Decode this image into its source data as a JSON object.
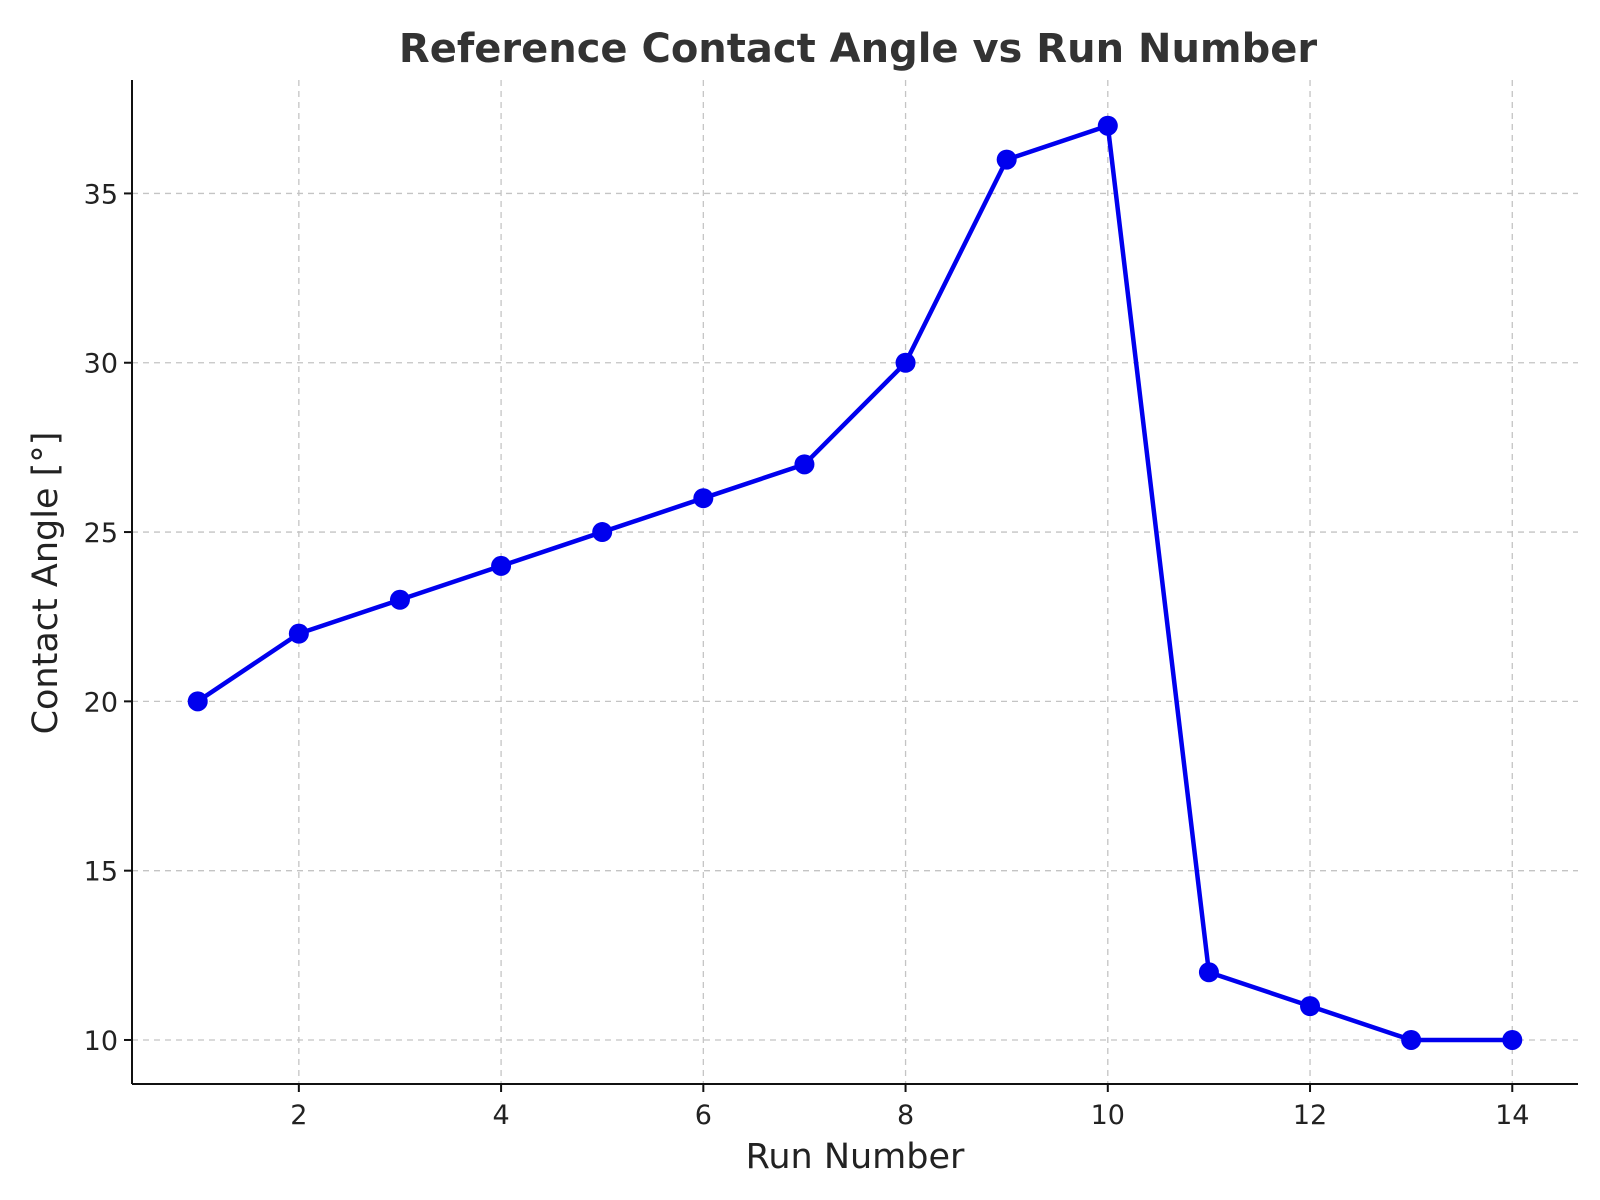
{
  "chart_data": {
    "type": "line",
    "title": "Reference Contact Angle vs Run Number",
    "xlabel": "Run Number",
    "ylabel": "Contact Angle [°]",
    "xlim": [
      0.35,
      14.65
    ],
    "ylim": [
      8.7,
      38.35
    ],
    "xticks": [
      2,
      4,
      6,
      8,
      10,
      12,
      14
    ],
    "yticks": [
      10,
      15,
      20,
      25,
      30,
      35
    ],
    "grid": true,
    "series": [
      {
        "color": "#0000ee",
        "marker": "circle",
        "x": [
          1,
          2,
          3,
          4,
          5,
          6,
          7,
          8,
          9,
          10,
          11,
          12,
          13,
          14
        ],
        "y": [
          20,
          22,
          23,
          24,
          25,
          26,
          27,
          30,
          36,
          37,
          12,
          11,
          10,
          10
        ]
      }
    ]
  }
}
